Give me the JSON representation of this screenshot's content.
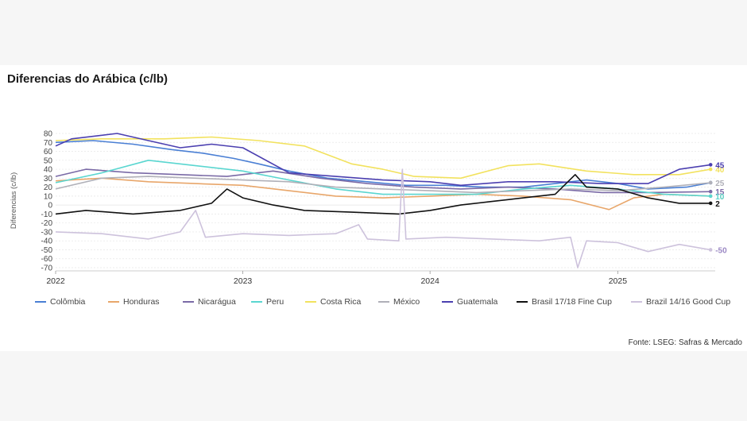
{
  "title": "Diferencias do Arábica (c/lb)",
  "source": "Fonte: LSEG: Safras & Mercado",
  "chart_data": {
    "type": "line",
    "title": "Diferencias do Arábica (c/lb)",
    "ylabel": "Diferencias (c/lb)",
    "xlabel": "",
    "ylim": [
      -70,
      80
    ],
    "yticks": [
      80,
      70,
      60,
      50,
      40,
      30,
      20,
      10,
      0,
      -10,
      -20,
      -30,
      -40,
      -50,
      -60,
      -70
    ],
    "xlim": [
      "2022-01-01",
      "2025-07-10"
    ],
    "xticks": [
      "2022",
      "2023",
      "2024",
      "2025"
    ],
    "grid": true,
    "legend_position": "bottom",
    "series": [
      {
        "name": "Colômbia",
        "color": "#4a7fd4",
        "end_label": "",
        "points": [
          [
            "2022-01-01",
            70
          ],
          [
            "2022-03-15",
            72
          ],
          [
            "2022-06-01",
            68
          ],
          [
            "2022-08-15",
            62
          ],
          [
            "2022-10-15",
            58
          ],
          [
            "2022-12-15",
            52
          ],
          [
            "2023-02-01",
            46
          ],
          [
            "2023-04-01",
            38
          ],
          [
            "2023-06-15",
            30
          ],
          [
            "2023-09-01",
            26
          ],
          [
            "2023-11-15",
            22
          ],
          [
            "2024-02-01",
            22
          ],
          [
            "2024-04-15",
            20
          ],
          [
            "2024-07-01",
            20
          ],
          [
            "2024-09-01",
            24
          ],
          [
            "2024-11-01",
            28
          ],
          [
            "2025-01-01",
            24
          ],
          [
            "2025-03-01",
            18
          ],
          [
            "2025-05-15",
            20
          ],
          [
            "2025-07-01",
            25
          ]
        ]
      },
      {
        "name": "Honduras",
        "color": "#e8a66a",
        "end_label": "10",
        "points": [
          [
            "2022-01-01",
            27
          ],
          [
            "2022-04-01",
            30
          ],
          [
            "2022-07-01",
            26
          ],
          [
            "2022-10-01",
            24
          ],
          [
            "2023-01-01",
            22
          ],
          [
            "2023-04-01",
            16
          ],
          [
            "2023-07-01",
            10
          ],
          [
            "2023-10-01",
            8
          ],
          [
            "2024-01-01",
            10
          ],
          [
            "2024-04-01",
            12
          ],
          [
            "2024-07-01",
            10
          ],
          [
            "2024-10-01",
            6
          ],
          [
            "2024-12-15",
            -5
          ],
          [
            "2025-02-01",
            8
          ],
          [
            "2025-04-01",
            12
          ],
          [
            "2025-07-01",
            10
          ]
        ]
      },
      {
        "name": "Nicarágua",
        "color": "#7a6aa6",
        "end_label": "15",
        "points": [
          [
            "2022-01-01",
            32
          ],
          [
            "2022-03-01",
            40
          ],
          [
            "2022-06-01",
            36
          ],
          [
            "2022-09-01",
            34
          ],
          [
            "2022-12-01",
            32
          ],
          [
            "2023-03-01",
            38
          ],
          [
            "2023-06-01",
            30
          ],
          [
            "2023-09-01",
            24
          ],
          [
            "2023-12-01",
            20
          ],
          [
            "2024-03-01",
            18
          ],
          [
            "2024-06-01",
            20
          ],
          [
            "2024-09-01",
            18
          ],
          [
            "2024-12-01",
            14
          ],
          [
            "2025-03-01",
            14
          ],
          [
            "2025-07-01",
            15
          ]
        ]
      },
      {
        "name": "Peru",
        "color": "#5ad6d0",
        "end_label": "10",
        "points": [
          [
            "2022-01-01",
            25
          ],
          [
            "2022-04-01",
            36
          ],
          [
            "2022-07-01",
            50
          ],
          [
            "2022-10-01",
            44
          ],
          [
            "2023-01-01",
            38
          ],
          [
            "2023-04-01",
            28
          ],
          [
            "2023-07-01",
            18
          ],
          [
            "2023-10-01",
            12
          ],
          [
            "2024-01-01",
            12
          ],
          [
            "2024-04-01",
            12
          ],
          [
            "2024-07-01",
            18
          ],
          [
            "2024-10-01",
            22
          ],
          [
            "2025-01-01",
            18
          ],
          [
            "2025-04-01",
            12
          ],
          [
            "2025-07-01",
            10
          ]
        ]
      },
      {
        "name": "Costa Rica",
        "color": "#f2e25e",
        "end_label": "40",
        "points": [
          [
            "2022-01-01",
            72
          ],
          [
            "2022-04-01",
            74
          ],
          [
            "2022-08-01",
            74
          ],
          [
            "2022-11-01",
            76
          ],
          [
            "2023-02-01",
            72
          ],
          [
            "2023-05-01",
            66
          ],
          [
            "2023-08-01",
            46
          ],
          [
            "2023-10-01",
            40
          ],
          [
            "2023-12-01",
            32
          ],
          [
            "2024-03-01",
            30
          ],
          [
            "2024-06-01",
            44
          ],
          [
            "2024-08-01",
            46
          ],
          [
            "2024-11-01",
            38
          ],
          [
            "2025-02-01",
            34
          ],
          [
            "2025-05-01",
            34
          ],
          [
            "2025-07-01",
            40
          ]
        ]
      },
      {
        "name": "México",
        "color": "#b0b0b8",
        "end_label": "25",
        "points": [
          [
            "2022-01-01",
            18
          ],
          [
            "2022-04-01",
            30
          ],
          [
            "2022-07-01",
            32
          ],
          [
            "2022-10-01",
            30
          ],
          [
            "2023-01-01",
            28
          ],
          [
            "2023-04-01",
            26
          ],
          [
            "2023-07-01",
            20
          ],
          [
            "2023-10-01",
            18
          ],
          [
            "2024-01-01",
            16
          ],
          [
            "2024-04-01",
            14
          ],
          [
            "2024-07-01",
            16
          ],
          [
            "2024-10-01",
            18
          ],
          [
            "2025-01-01",
            16
          ],
          [
            "2025-04-01",
            20
          ],
          [
            "2025-07-01",
            25
          ]
        ]
      },
      {
        "name": "Guatemala",
        "color": "#4b3fb0",
        "end_label": "45",
        "points": [
          [
            "2022-01-01",
            66
          ],
          [
            "2022-02-01",
            74
          ],
          [
            "2022-05-01",
            80
          ],
          [
            "2022-07-01",
            72
          ],
          [
            "2022-09-01",
            64
          ],
          [
            "2022-11-01",
            68
          ],
          [
            "2023-01-01",
            64
          ],
          [
            "2023-04-01",
            36
          ],
          [
            "2023-07-01",
            32
          ],
          [
            "2023-10-01",
            28
          ],
          [
            "2024-01-01",
            26
          ],
          [
            "2024-03-01",
            22
          ],
          [
            "2024-06-01",
            26
          ],
          [
            "2024-09-01",
            26
          ],
          [
            "2024-12-01",
            24
          ],
          [
            "2025-03-01",
            24
          ],
          [
            "2025-05-01",
            40
          ],
          [
            "2025-07-01",
            45
          ]
        ]
      },
      {
        "name": "Brasil 17/18 Fine Cup",
        "color": "#111111",
        "end_label": "2",
        "points": [
          [
            "2022-01-01",
            -10
          ],
          [
            "2022-03-01",
            -6
          ],
          [
            "2022-06-01",
            -10
          ],
          [
            "2022-09-01",
            -6
          ],
          [
            "2022-11-01",
            2
          ],
          [
            "2022-12-01",
            18
          ],
          [
            "2023-01-01",
            8
          ],
          [
            "2023-03-01",
            0
          ],
          [
            "2023-05-01",
            -6
          ],
          [
            "2023-08-01",
            -8
          ],
          [
            "2023-11-01",
            -10
          ],
          [
            "2024-01-01",
            -6
          ],
          [
            "2024-03-01",
            0
          ],
          [
            "2024-05-01",
            4
          ],
          [
            "2024-07-01",
            8
          ],
          [
            "2024-09-01",
            12
          ],
          [
            "2024-10-10",
            34
          ],
          [
            "2024-11-01",
            20
          ],
          [
            "2025-01-01",
            18
          ],
          [
            "2025-03-01",
            8
          ],
          [
            "2025-05-01",
            2
          ],
          [
            "2025-07-01",
            2
          ]
        ]
      },
      {
        "name": "Brazil 14/16 Good Cup",
        "color": "#cdc2dc",
        "end_label": "-50",
        "points": [
          [
            "2022-01-01",
            -30
          ],
          [
            "2022-04-01",
            -32
          ],
          [
            "2022-07-01",
            -38
          ],
          [
            "2022-09-01",
            -30
          ],
          [
            "2022-10-01",
            -6
          ],
          [
            "2022-10-20",
            -36
          ],
          [
            "2023-01-01",
            -32
          ],
          [
            "2023-04-01",
            -34
          ],
          [
            "2023-07-01",
            -32
          ],
          [
            "2023-08-15",
            -22
          ],
          [
            "2023-09-01",
            -38
          ],
          [
            "2023-11-01",
            -40
          ],
          [
            "2023-11-08",
            40
          ],
          [
            "2023-11-15",
            -38
          ],
          [
            "2024-02-01",
            -36
          ],
          [
            "2024-05-01",
            -38
          ],
          [
            "2024-08-01",
            -40
          ],
          [
            "2024-10-01",
            -36
          ],
          [
            "2024-10-15",
            -70
          ],
          [
            "2024-11-01",
            -40
          ],
          [
            "2025-01-01",
            -42
          ],
          [
            "2025-03-01",
            -52
          ],
          [
            "2025-05-01",
            -44
          ],
          [
            "2025-07-01",
            -50
          ]
        ]
      }
    ]
  }
}
